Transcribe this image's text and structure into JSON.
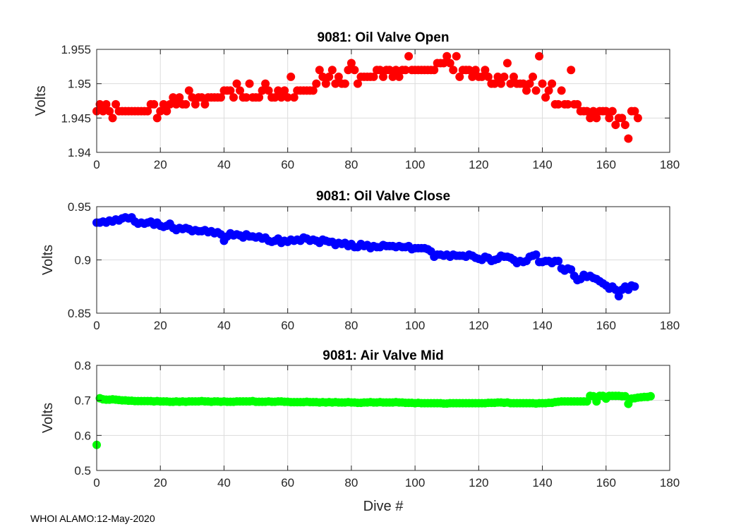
{
  "figure": {
    "xlabel": "Dive #",
    "footer": "WHOI ALAMO:12-May-2020"
  },
  "chart_data": [
    {
      "type": "scatter",
      "title": "9081: Oil Valve Open",
      "xlabel": "",
      "ylabel": "Volts",
      "xlim": [
        0,
        180
      ],
      "ylim": [
        1.94,
        1.955
      ],
      "xticks": [
        "0",
        "20",
        "40",
        "60",
        "80",
        "100",
        "120",
        "140",
        "160",
        "180"
      ],
      "yticks": [
        "1.94",
        "1.945",
        "1.95",
        "1.955"
      ],
      "grid": true,
      "color": "#ff0000",
      "series": [
        {
          "name": "Oil Valve Open",
          "x": [],
          "y": []
        }
      ],
      "values": [
        1.946,
        1.947,
        1.946,
        1.947,
        1.946,
        1.945,
        1.947,
        1.946,
        1.946,
        1.946,
        1.946,
        1.946,
        1.946,
        1.946,
        1.946,
        1.946,
        1.946,
        1.947,
        1.947,
        1.945,
        1.946,
        1.947,
        1.946,
        1.947,
        1.948,
        1.947,
        1.948,
        1.947,
        1.947,
        1.949,
        1.948,
        1.947,
        1.948,
        1.948,
        1.947,
        1.948,
        1.948,
        1.948,
        1.948,
        1.948,
        1.949,
        1.949,
        1.949,
        1.948,
        1.95,
        1.949,
        1.948,
        1.948,
        1.95,
        1.948,
        1.948,
        1.948,
        1.949,
        1.95,
        1.949,
        1.948,
        1.948,
        1.949,
        1.948,
        1.949,
        1.948,
        1.951,
        1.948,
        1.949,
        1.949,
        1.949,
        1.949,
        1.949,
        1.949,
        1.95,
        1.952,
        1.951,
        1.95,
        1.951,
        1.952,
        1.95,
        1.951,
        1.95,
        1.95,
        1.952,
        1.953,
        1.952,
        1.95,
        1.951,
        1.951,
        1.951,
        1.951,
        1.951,
        1.952,
        1.952,
        1.951,
        1.952,
        1.952,
        1.951,
        1.952,
        1.951,
        1.952,
        1.952,
        1.954,
        1.952,
        1.952,
        1.952,
        1.952,
        1.952,
        1.952,
        1.952,
        1.952,
        1.953,
        1.953,
        1.953,
        1.954,
        1.953,
        1.952,
        1.954,
        1.951,
        1.952,
        1.952,
        1.952,
        1.951,
        1.952,
        1.951,
        1.951,
        1.952,
        1.951,
        1.95,
        1.95,
        1.951,
        1.95,
        1.951,
        1.953,
        1.95,
        1.951,
        1.95,
        1.95,
        1.95,
        1.949,
        1.95,
        1.951,
        1.949,
        1.954,
        1.95,
        1.948,
        1.949,
        1.95,
        1.947,
        1.947,
        1.949,
        1.947,
        1.947,
        1.952,
        1.947,
        1.947,
        1.946,
        1.946,
        1.946,
        1.945,
        1.946,
        1.945,
        1.946,
        1.946,
        1.946,
        1.945,
        1.946,
        1.944,
        1.945,
        1.945,
        1.944,
        1.942,
        1.946,
        1.946,
        1.945
      ]
    },
    {
      "type": "scatter",
      "title": "9081: Oil Valve Close",
      "xlabel": "",
      "ylabel": "Volts",
      "xlim": [
        0,
        180
      ],
      "ylim": [
        0.85,
        0.95
      ],
      "xticks": [
        "0",
        "20",
        "40",
        "60",
        "80",
        "100",
        "120",
        "140",
        "160",
        "180"
      ],
      "yticks": [
        "0.85",
        "0.9",
        "0.95"
      ],
      "grid": true,
      "color": "#0000ff",
      "values": [
        0.935,
        0.935,
        0.936,
        0.935,
        0.937,
        0.936,
        0.938,
        0.937,
        0.939,
        0.94,
        0.939,
        0.94,
        0.936,
        0.934,
        0.935,
        0.934,
        0.935,
        0.936,
        0.933,
        0.935,
        0.932,
        0.931,
        0.932,
        0.934,
        0.93,
        0.928,
        0.93,
        0.929,
        0.93,
        0.929,
        0.927,
        0.928,
        0.927,
        0.927,
        0.928,
        0.926,
        0.927,
        0.925,
        0.926,
        0.924,
        0.918,
        0.922,
        0.925,
        0.923,
        0.924,
        0.923,
        0.921,
        0.924,
        0.922,
        0.922,
        0.921,
        0.922,
        0.92,
        0.921,
        0.918,
        0.917,
        0.918,
        0.92,
        0.916,
        0.918,
        0.917,
        0.919,
        0.918,
        0.919,
        0.918,
        0.921,
        0.92,
        0.918,
        0.919,
        0.918,
        0.916,
        0.919,
        0.918,
        0.917,
        0.917,
        0.914,
        0.916,
        0.915,
        0.916,
        0.913,
        0.915,
        0.912,
        0.912,
        0.915,
        0.913,
        0.914,
        0.911,
        0.913,
        0.912,
        0.912,
        0.914,
        0.913,
        0.913,
        0.913,
        0.912,
        0.913,
        0.912,
        0.912,
        0.913,
        0.91,
        0.911,
        0.911,
        0.911,
        0.911,
        0.91,
        0.908,
        0.903,
        0.905,
        0.905,
        0.904,
        0.905,
        0.903,
        0.905,
        0.904,
        0.904,
        0.904,
        0.903,
        0.905,
        0.904,
        0.902,
        0.901,
        0.9,
        0.903,
        0.902,
        0.899,
        0.9,
        0.901,
        0.904,
        0.903,
        0.903,
        0.902,
        0.9,
        0.897,
        0.899,
        0.898,
        0.899,
        0.903,
        0.904,
        0.905,
        0.898,
        0.898,
        0.899,
        0.899,
        0.897,
        0.899,
        0.899,
        0.892,
        0.89,
        0.892,
        0.891,
        0.885,
        0.881,
        0.882,
        0.886,
        0.884,
        0.885,
        0.883,
        0.882,
        0.88,
        0.878,
        0.876,
        0.873,
        0.875,
        0.872,
        0.866,
        0.872,
        0.875,
        0.872,
        0.876,
        0.875
      ]
    },
    {
      "type": "scatter",
      "title": "9081: Air Valve Mid",
      "xlabel": "Dive #",
      "ylabel": "Volts",
      "xlim": [
        0,
        180
      ],
      "ylim": [
        0.5,
        0.8
      ],
      "xticks": [
        "0",
        "20",
        "40",
        "60",
        "80",
        "100",
        "120",
        "140",
        "160",
        "180"
      ],
      "yticks": [
        "0.5",
        "0.6",
        "0.7",
        "0.8"
      ],
      "grid": true,
      "color": "#00ff00",
      "values": [
        0.573,
        0.706,
        0.703,
        0.702,
        0.702,
        0.703,
        0.702,
        0.701,
        0.7,
        0.7,
        0.699,
        0.699,
        0.698,
        0.698,
        0.698,
        0.698,
        0.698,
        0.698,
        0.697,
        0.698,
        0.697,
        0.697,
        0.697,
        0.696,
        0.696,
        0.697,
        0.696,
        0.697,
        0.696,
        0.697,
        0.697,
        0.697,
        0.697,
        0.698,
        0.697,
        0.697,
        0.696,
        0.697,
        0.697,
        0.696,
        0.697,
        0.696,
        0.696,
        0.696,
        0.697,
        0.697,
        0.697,
        0.697,
        0.697,
        0.698,
        0.696,
        0.696,
        0.696,
        0.696,
        0.697,
        0.696,
        0.696,
        0.697,
        0.697,
        0.696,
        0.696,
        0.695,
        0.695,
        0.695,
        0.695,
        0.695,
        0.696,
        0.695,
        0.695,
        0.695,
        0.694,
        0.695,
        0.694,
        0.695,
        0.694,
        0.695,
        0.694,
        0.694,
        0.694,
        0.695,
        0.694,
        0.694,
        0.693,
        0.693,
        0.694,
        0.694,
        0.695,
        0.694,
        0.694,
        0.695,
        0.694,
        0.694,
        0.694,
        0.694,
        0.695,
        0.694,
        0.694,
        0.693,
        0.693,
        0.693,
        0.692,
        0.693,
        0.692,
        0.692,
        0.692,
        0.692,
        0.692,
        0.692,
        0.692,
        0.691,
        0.691,
        0.692,
        0.692,
        0.692,
        0.692,
        0.692,
        0.692,
        0.692,
        0.692,
        0.692,
        0.692,
        0.692,
        0.692,
        0.693,
        0.693,
        0.693,
        0.694,
        0.694,
        0.693,
        0.694,
        0.692,
        0.692,
        0.692,
        0.692,
        0.692,
        0.692,
        0.692,
        0.692,
        0.691,
        0.692,
        0.692,
        0.692,
        0.693,
        0.693,
        0.695,
        0.696,
        0.697,
        0.697,
        0.697,
        0.697,
        0.697,
        0.697,
        0.697,
        0.697,
        0.697,
        0.713,
        0.712,
        0.697,
        0.713,
        0.713,
        0.705,
        0.713,
        0.713,
        0.713,
        0.713,
        0.712,
        0.712,
        0.69,
        0.705,
        0.706,
        0.708,
        0.709,
        0.71,
        0.71,
        0.712
      ]
    }
  ]
}
